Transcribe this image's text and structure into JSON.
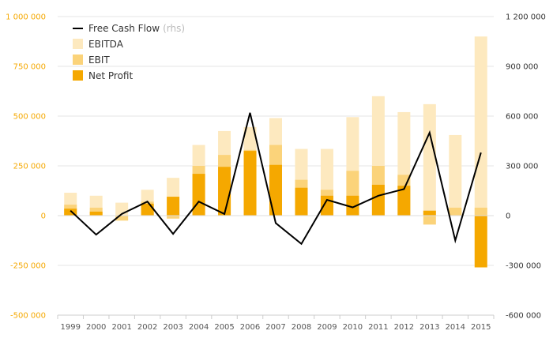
{
  "chart_data": {
    "type": "bar",
    "categories": [
      "1999",
      "2000",
      "2001",
      "2002",
      "2003",
      "2004",
      "2005",
      "2006",
      "2007",
      "2008",
      "2009",
      "2010",
      "2011",
      "2012",
      "2013",
      "2014",
      "2015"
    ],
    "series": [
      {
        "name": "EBITDA",
        "type": "bar",
        "axis": "left",
        "color": "#fde9bf",
        "values": [
          115000,
          100000,
          65000,
          130000,
          190000,
          355000,
          425000,
          445000,
          490000,
          335000,
          335000,
          495000,
          600000,
          520000,
          560000,
          405000,
          900000
        ]
      },
      {
        "name": "EBIT",
        "type": "bar",
        "axis": "left",
        "color": "#fbd37a",
        "values": [
          55000,
          40000,
          -25000,
          70000,
          -15000,
          250000,
          305000,
          330000,
          355000,
          180000,
          130000,
          225000,
          250000,
          205000,
          -45000,
          40000,
          40000
        ]
      },
      {
        "name": "Net Profit",
        "type": "bar",
        "axis": "left",
        "color": "#f5a800",
        "values": [
          35000,
          20000,
          0,
          60000,
          95000,
          210000,
          245000,
          325000,
          255000,
          140000,
          100000,
          100000,
          155000,
          150000,
          25000,
          0,
          -260000
        ]
      },
      {
        "name": "Free Cash Flow",
        "type": "line",
        "axis": "right",
        "color": "#000000",
        "values": [
          30000,
          -115000,
          10000,
          85000,
          -110000,
          85000,
          10000,
          620000,
          -45000,
          -170000,
          95000,
          50000,
          120000,
          160000,
          500000,
          -150000,
          380000
        ]
      }
    ],
    "legend": {
      "position": "top-left",
      "entries": [
        {
          "label": "Free Cash Flow",
          "suffix": "(rhs)",
          "kind": "line",
          "color": "#000000"
        },
        {
          "label": "EBITDA",
          "kind": "box",
          "color": "#fde9bf"
        },
        {
          "label": "EBIT",
          "kind": "box",
          "color": "#fbd37a"
        },
        {
          "label": "Net Profit",
          "kind": "box",
          "color": "#f5a800"
        }
      ]
    },
    "y_left": {
      "min": -500000,
      "max": 1000000,
      "ticks": [
        -500000,
        -250000,
        0,
        250000,
        500000,
        750000,
        1000000
      ],
      "tick_labels": [
        "-500 000",
        "-250 000",
        "0",
        "250 000",
        "500 000",
        "750 000",
        "1 000 000"
      ],
      "color": "#f5a800"
    },
    "y_right": {
      "min": -600000,
      "max": 1200000,
      "ticks": [
        -600000,
        -300000,
        0,
        300000,
        600000,
        900000,
        1200000
      ],
      "tick_labels": [
        "-600 000",
        "-300 000",
        "0",
        "300 000",
        "600 000",
        "900 000",
        "1 200 000"
      ],
      "color": "#000000"
    },
    "grid": true,
    "title": "",
    "xlabel": "",
    "ylabel": ""
  }
}
